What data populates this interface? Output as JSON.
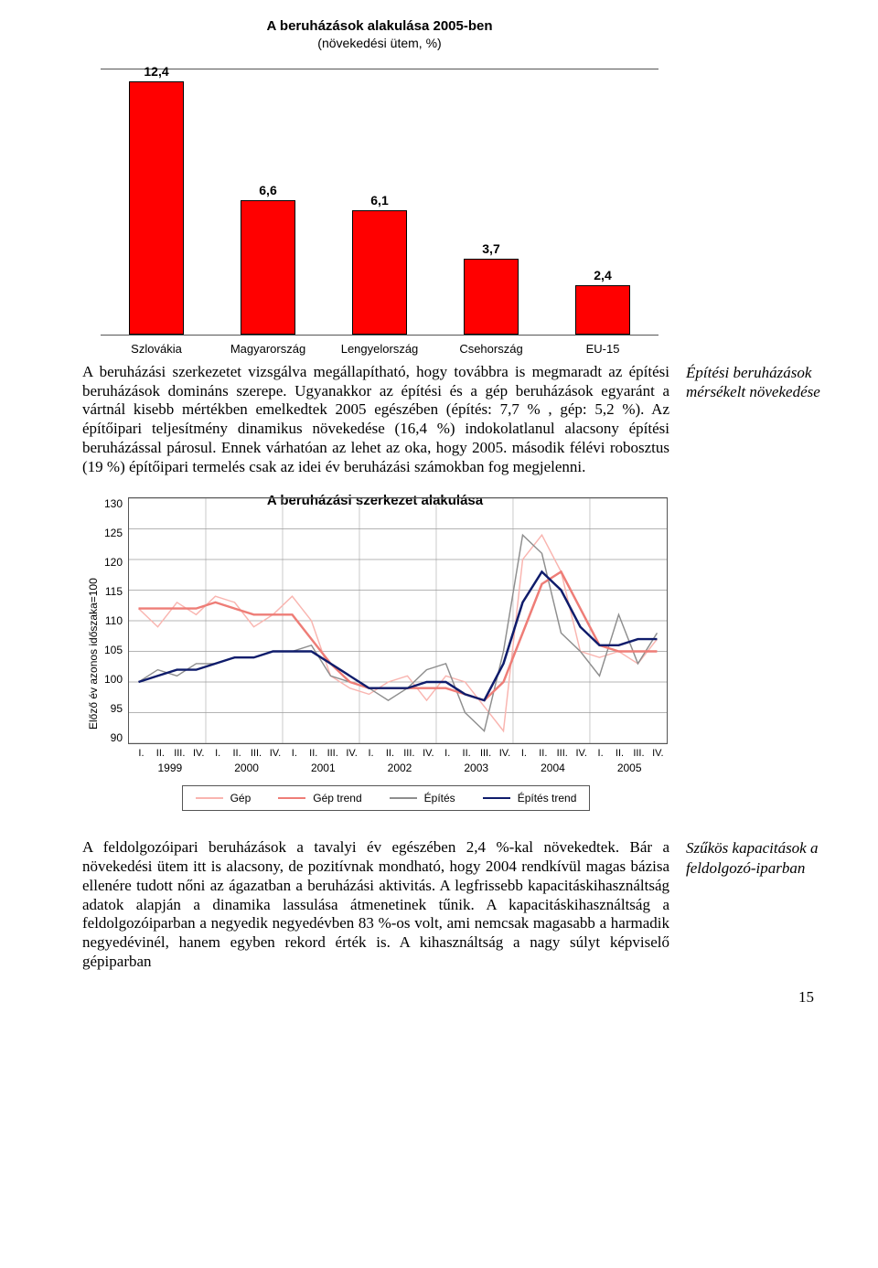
{
  "chart1": {
    "type": "bar",
    "title": "A beruházások alakulása 2005-ben",
    "subtitle": "(növekedési ütem, %)",
    "categories": [
      "Szlovákia",
      "Magyarország",
      "Lengyelország",
      "Csehország",
      "EU-15"
    ],
    "values": [
      12.4,
      6.6,
      6.1,
      3.7,
      2.4
    ],
    "value_labels": [
      "12,4",
      "6,6",
      "6,1",
      "3,7",
      "2,4"
    ],
    "bar_color": "#ff0000",
    "border_color": "#000000",
    "y_max": 13.0,
    "title_fontsize": 15,
    "label_fontsize": 14,
    "cat_fontsize": 13
  },
  "para1": "A beruházási szerkezetet vizsgálva megállapítható, hogy továbbra is megmaradt az építési beruházások domináns szerepe. Ugyanakkor az építési és a gép beruházások egyaránt a vártnál kisebb mértékben emelkedtek 2005 egészében (építés: 7,7 % , gép: 5,2 %). Az építőipari teljesítmény dinamikus növekedése (16,4 %) indokolatlanul alacsony építési beruházással párosul. Ennek várhatóan az lehet az oka, hogy 2005. második félévi robosztus (19 %) építőipari termelés csak az idei év beruházási számokban fog megjelenni.",
  "margin1": "Építési beruházások mérsékelt növekedése",
  "chart2": {
    "type": "line",
    "title": "A beruházási szerkezet alakulása",
    "ylabel": "Előző év azonos időszaka=100",
    "y_ticks": [
      130,
      125,
      120,
      115,
      110,
      105,
      100,
      95,
      90
    ],
    "ylim": [
      90,
      130
    ],
    "years": [
      "1999",
      "2000",
      "2001",
      "2002",
      "2003",
      "2004",
      "2005"
    ],
    "quarters_per_year": [
      "I.",
      "II.",
      "III.",
      "IV."
    ],
    "series": {
      "gep": {
        "label": "Gép",
        "color": "#f9b5b0",
        "width": 1.4,
        "values": [
          112,
          109,
          113,
          111,
          114,
          113,
          109,
          111,
          114,
          110,
          101,
          99,
          98,
          100,
          101,
          97,
          101,
          100,
          96,
          92,
          120,
          124,
          118,
          105,
          104,
          105,
          103,
          107
        ]
      },
      "gep_trend": {
        "label": "Gép trend",
        "color": "#ee7d77",
        "width": 2.4,
        "values": [
          112,
          112,
          112,
          112,
          113,
          112,
          111,
          111,
          111,
          107,
          103,
          100,
          99,
          99,
          99,
          99,
          99,
          98,
          97,
          100,
          108,
          116,
          118,
          112,
          106,
          105,
          105,
          105
        ]
      },
      "epites": {
        "label": "Építés",
        "color": "#8e8e8e",
        "width": 1.4,
        "values": [
          100,
          102,
          101,
          103,
          103,
          104,
          104,
          105,
          105,
          106,
          101,
          100,
          99,
          97,
          99,
          102,
          103,
          95,
          92,
          105,
          124,
          121,
          108,
          105,
          101,
          111,
          103,
          108
        ]
      },
      "epites_trend": {
        "label": "Építés trend",
        "color": "#0f1c6b",
        "width": 2.4,
        "values": [
          100,
          101,
          102,
          102,
          103,
          104,
          104,
          105,
          105,
          105,
          103,
          101,
          99,
          99,
          99,
          100,
          100,
          98,
          97,
          103,
          113,
          118,
          115,
          109,
          106,
          106,
          107,
          107
        ]
      }
    },
    "grid_color": "#9b9b9b"
  },
  "para2": "A feldolgozóipari beruházások a tavalyi év egészében 2,4 %-kal növekedtek. Bár a növekedési ütem itt is alacsony, de pozitívnak mondható, hogy 2004 rendkívül magas bázisa ellenére tudott nőni az ágazatban a beruházási aktivitás. A legfrissebb kapacitáskihasználtság adatok alapján a dinamika lassulása átmenetinek tűnik. A kapacitáskihasználtság a feldolgozóiparban a negyedik negyedévben 83 %-os volt, ami nemcsak magasabb a harmadik negyedévinél, hanem egyben rekord érték is. A kihasználtság a nagy súlyt képviselő gépiparban",
  "margin2": "Szűkös kapacitások a feldolgozó-iparban",
  "page_number": "15"
}
